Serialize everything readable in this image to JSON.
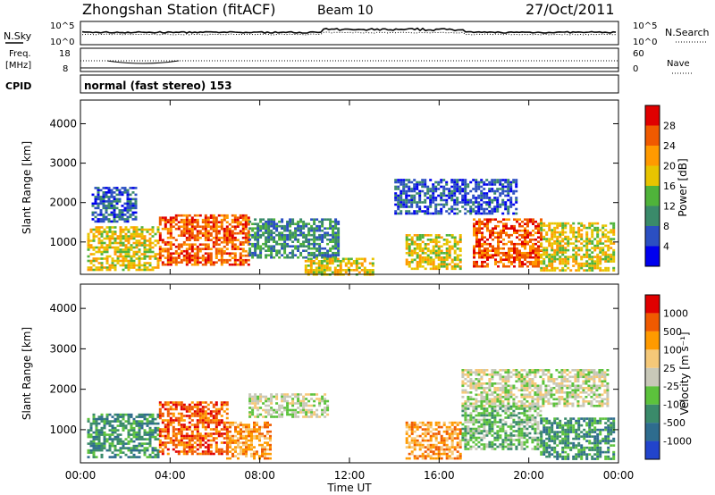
{
  "header": {
    "station": "Zhongshan Station (fitACF)",
    "beam": "Beam 10",
    "date": "27/Oct/2011"
  },
  "noise_panel": {
    "left_label": "N.Sky",
    "right_label": "N.Search",
    "tick_top": "10^5",
    "tick_bottom": "10^0"
  },
  "freq_panel": {
    "left_label_1": "Freq.",
    "left_label_2": "[MHz]",
    "left_tick_top": "18",
    "left_tick_bottom": "8",
    "right_label": "Nave",
    "right_tick_top": "60",
    "right_tick_bottom": "0"
  },
  "cpid_panel": {
    "label": "CPID",
    "text": "normal (fast stereo) 153"
  },
  "chart_data": [
    {
      "type": "heatmap",
      "name": "power",
      "ylabel": "Slant Range [km]",
      "yticks": [
        "1000",
        "2000",
        "3000",
        "4000"
      ],
      "ylim": [
        180,
        4600
      ],
      "xlim": [
        0,
        24
      ],
      "colorbar_label": "Power [dB]",
      "colorbar_ticks": [
        "4",
        "8",
        "12",
        "16",
        "20",
        "24",
        "28"
      ],
      "colorbar_colors": [
        "#0000ee",
        "#2b4fc2",
        "#3a8a6a",
        "#4fb33a",
        "#e8c400",
        "#ff9a00",
        "#f05a00",
        "#e00000"
      ],
      "regions": [
        {
          "t0": 0.3,
          "t1": 3.5,
          "r0": 300,
          "r1": 1400,
          "level": 4
        },
        {
          "t0": 0.5,
          "t1": 2.5,
          "r0": 1500,
          "r1": 2400,
          "level": 1
        },
        {
          "t0": 3.5,
          "t1": 7.5,
          "r0": 400,
          "r1": 1700,
          "level": 6
        },
        {
          "t0": 7.5,
          "t1": 11.5,
          "r0": 600,
          "r1": 1600,
          "level": 2
        },
        {
          "t0": 10.0,
          "t1": 13.0,
          "r0": 200,
          "r1": 600,
          "level": 4
        },
        {
          "t0": 14.5,
          "t1": 17.0,
          "r0": 300,
          "r1": 1200,
          "level": 4
        },
        {
          "t0": 14.0,
          "t1": 19.5,
          "r0": 1700,
          "r1": 2600,
          "level": 1
        },
        {
          "t0": 17.5,
          "t1": 20.5,
          "r0": 400,
          "r1": 1600,
          "level": 6
        },
        {
          "t0": 20.5,
          "t1": 23.8,
          "r0": 300,
          "r1": 1500,
          "level": 4
        }
      ]
    },
    {
      "type": "heatmap",
      "name": "velocity",
      "ylabel": "Slant Range [km]",
      "yticks": [
        "1000",
        "2000",
        "3000",
        "4000"
      ],
      "ylim": [
        180,
        4600
      ],
      "xlim": [
        0,
        24
      ],
      "xticks": [
        "00:00",
        "04:00",
        "08:00",
        "12:00",
        "16:00",
        "20:00",
        "00:00"
      ],
      "xlabel": "Time UT",
      "colorbar_label": "Velocity [m s⁻¹]",
      "colorbar_ticks": [
        "1000",
        "500",
        "100",
        "25",
        "-25",
        "-100",
        "-500",
        "-1000"
      ],
      "colorbar_colors": [
        "#2244cc",
        "#2e6c8e",
        "#3a8a6a",
        "#5cc23c",
        "#c8c8b8",
        "#f5c878",
        "#ff9a00",
        "#f05a00",
        "#e00000"
      ],
      "regions": [
        {
          "t0": 0.3,
          "t1": 3.5,
          "r0": 300,
          "r1": 1400,
          "level": 2
        },
        {
          "t0": 3.5,
          "t1": 6.5,
          "r0": 400,
          "r1": 1700,
          "level": 7
        },
        {
          "t0": 6.5,
          "t1": 8.5,
          "r0": 300,
          "r1": 1200,
          "level": 6
        },
        {
          "t0": 7.5,
          "t1": 11.0,
          "r0": 1300,
          "r1": 1900,
          "level": 4
        },
        {
          "t0": 14.5,
          "t1": 17.0,
          "r0": 300,
          "r1": 1200,
          "level": 6
        },
        {
          "t0": 17.0,
          "t1": 20.5,
          "r0": 500,
          "r1": 1600,
          "level": 3
        },
        {
          "t0": 17.0,
          "t1": 23.5,
          "r0": 1600,
          "r1": 2500,
          "level": 4
        },
        {
          "t0": 20.5,
          "t1": 23.8,
          "r0": 300,
          "r1": 1300,
          "level": 2
        }
      ]
    }
  ]
}
